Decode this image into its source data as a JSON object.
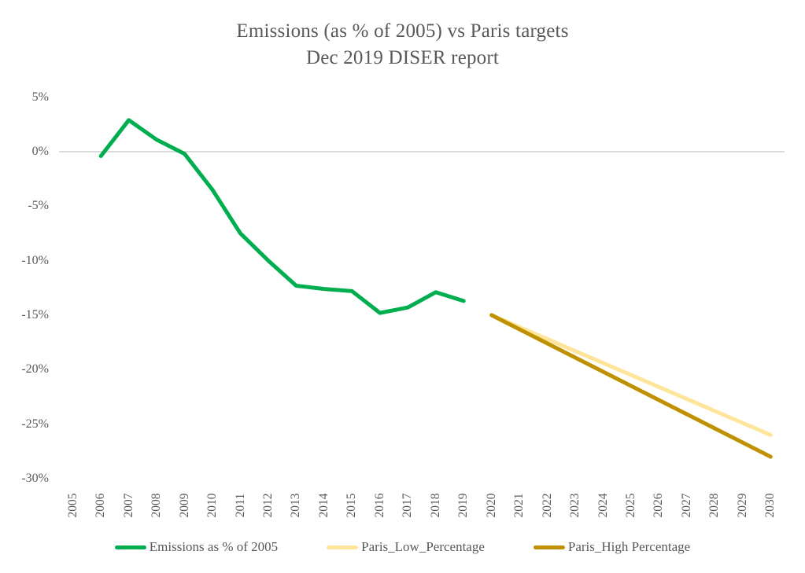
{
  "title": {
    "line1": "Emissions (as % of 2005) vs Paris targets",
    "line2": "Dec 2019 DISER report"
  },
  "colors": {
    "background": "#FFFFFF",
    "title_text": "#595959",
    "axis_text": "#595959",
    "gridline": "#DBDBDB",
    "emissions_green": "#00AE50",
    "paris_low_yellow": "#FFE599",
    "paris_high_gold": "#BF9000"
  },
  "chart_data": {
    "type": "line",
    "title": "Emissions (as % of 2005) vs Paris targets",
    "subtitle": "Dec 2019 DISER report",
    "x_range": [
      2005,
      2030
    ],
    "x_tick_labels": [
      "2005",
      "2006",
      "2007",
      "2008",
      "2009",
      "2010",
      "2011",
      "2012",
      "2013",
      "2014",
      "2015",
      "2016",
      "2017",
      "2018",
      "2019",
      "2020",
      "2021",
      "2022",
      "2023",
      "2024",
      "2025",
      "2026",
      "2027",
      "2028",
      "2029",
      "2030"
    ],
    "y_axis": {
      "unit": "%",
      "min": -30,
      "max": 5,
      "tick_values": [
        5,
        0,
        -5,
        -10,
        -15,
        -20,
        -25,
        -30
      ],
      "tick_labels": [
        "5%",
        "0%",
        "-5%",
        "-10%",
        "-15%",
        "-20%",
        "-25%",
        "-30%"
      ]
    },
    "gridlines": "zero-line-only",
    "legend_position": "bottom",
    "series": [
      {
        "name": "Emissions as % of 2005",
        "color": "#00AE50",
        "x": [
          2006,
          2007,
          2008,
          2009,
          2010,
          2011,
          2012,
          2013,
          2014,
          2015,
          2016,
          2017,
          2018,
          2019
        ],
        "values": [
          -0.4,
          2.9,
          1.1,
          -0.2,
          -3.5,
          -7.5,
          -10.0,
          -12.3,
          -12.6,
          -12.8,
          -14.8,
          -14.3,
          -12.9,
          -13.7
        ]
      },
      {
        "name": "Paris_Low_Percentage",
        "color": "#FFE599",
        "x": [
          2020,
          2030
        ],
        "values": [
          -15,
          -26
        ]
      },
      {
        "name": "Paris_High Percentage",
        "color": "#BF9000",
        "x": [
          2020,
          2030
        ],
        "values": [
          -15,
          -28
        ]
      }
    ]
  }
}
